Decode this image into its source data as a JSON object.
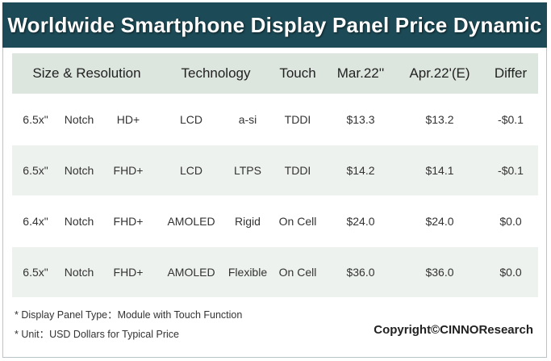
{
  "title": "Worldwide Smartphone Display Panel Price Dynamic",
  "headers": {
    "size_resolution": "Size & Resolution",
    "technology": "Technology",
    "touch": "Touch",
    "mar": "Mar.22''",
    "apr": "Apr.22'(E)",
    "differ": "Differ"
  },
  "rows": [
    {
      "size": "6.5x\"",
      "notch": "Notch",
      "res": "HD+",
      "tech": "LCD",
      "sub": "a-si",
      "touch": "TDDI",
      "mar": "$13.3",
      "apr": "$13.2",
      "differ": "-$0.1"
    },
    {
      "size": "6.5x\"",
      "notch": "Notch",
      "res": "FHD+",
      "tech": "LCD",
      "sub": "LTPS",
      "touch": "TDDI",
      "mar": "$14.2",
      "apr": "$14.1",
      "differ": "-$0.1"
    },
    {
      "size": "6.4x\"",
      "notch": "Notch",
      "res": "FHD+",
      "tech": "AMOLED",
      "sub": "Rigid",
      "touch": "On Cell",
      "mar": "$24.0",
      "apr": "$24.0",
      "differ": "$0.0"
    },
    {
      "size": "6.5x\"",
      "notch": "Notch",
      "res": "FHD+",
      "tech": "AMOLED",
      "sub": "Flexible",
      "touch": "On Cell",
      "mar": "$36.0",
      "apr": "$36.0",
      "differ": "$0.0"
    }
  ],
  "footnotes": {
    "panel_type": "* Display Panel Type：Module with Touch Function",
    "unit": "* Unit：USD Dollars for Typical Price"
  },
  "copyright": "Copyright©CINNOResearch"
}
